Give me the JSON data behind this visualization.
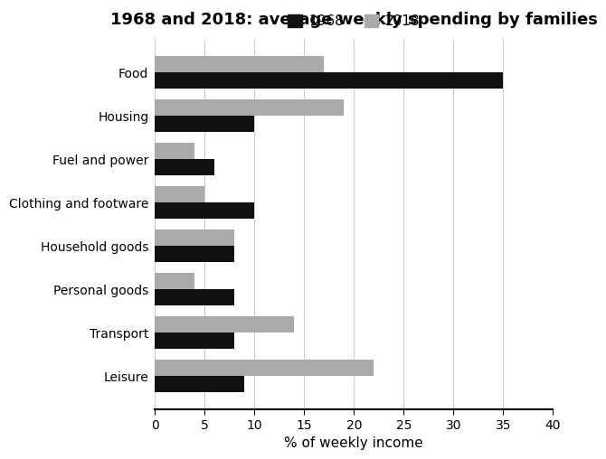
{
  "title": "1968 and 2018: average weekly spending by families",
  "xlabel": "% of weekly income",
  "categories": [
    "Food",
    "Housing",
    "Fuel and power",
    "Clothing and footware",
    "Household goods",
    "Personal goods",
    "Transport",
    "Leisure"
  ],
  "values_1968": [
    35,
    10,
    6,
    10,
    8,
    8,
    8,
    9
  ],
  "values_2018": [
    17,
    19,
    4,
    5,
    8,
    4,
    14,
    22
  ],
  "color_1968": "#111111",
  "color_2018": "#aaaaaa",
  "xlim": [
    0,
    40
  ],
  "xticks": [
    0,
    5,
    10,
    15,
    20,
    25,
    30,
    35,
    40
  ],
  "legend_labels": [
    "1968",
    "2018"
  ],
  "bar_height": 0.38,
  "title_fontsize": 13,
  "label_fontsize": 11,
  "tick_fontsize": 10,
  "legend_fontsize": 11
}
